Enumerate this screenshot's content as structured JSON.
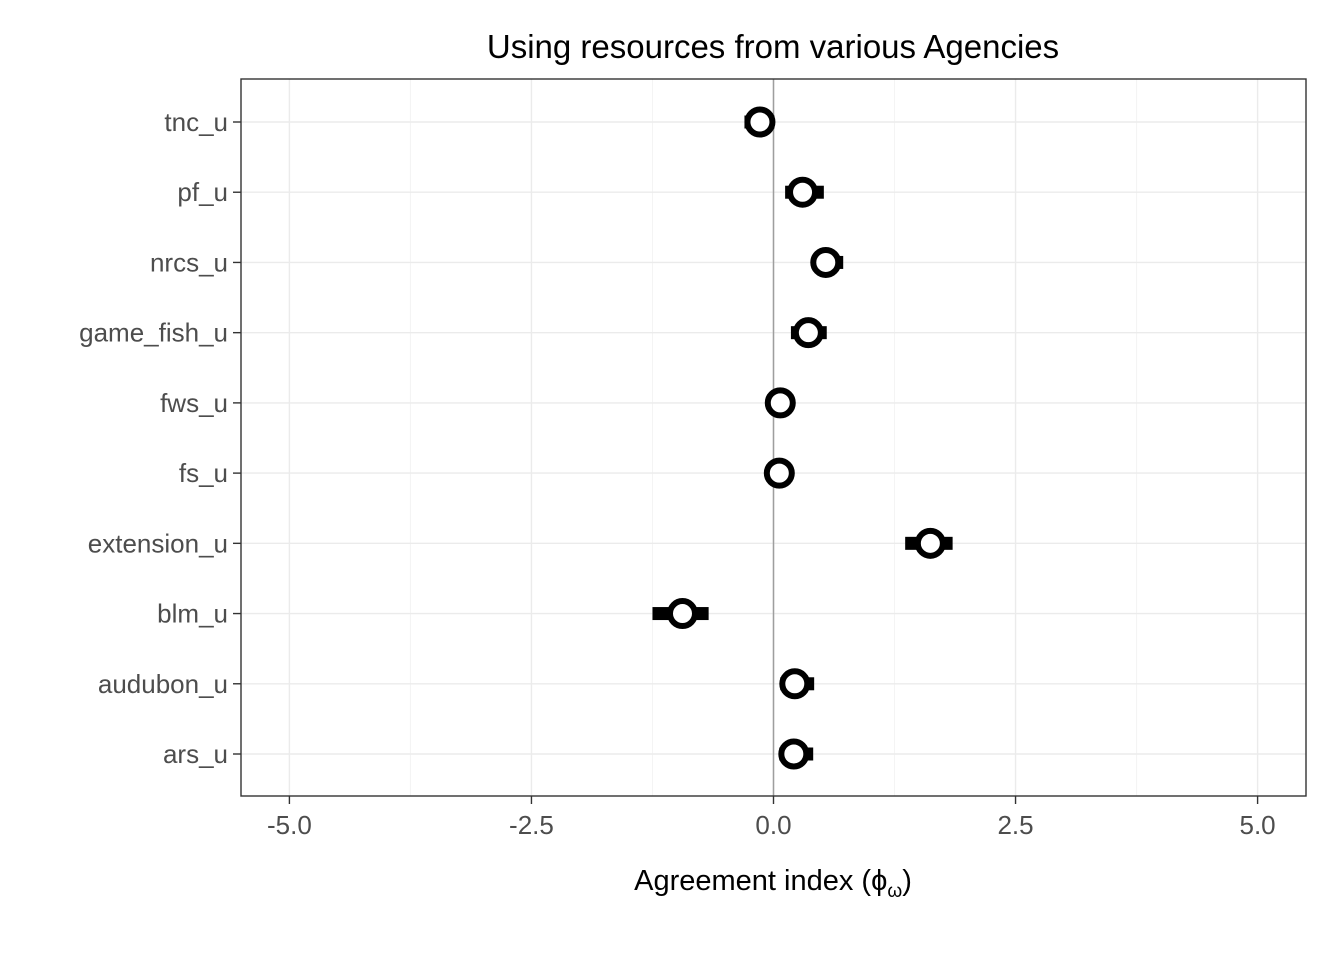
{
  "chart_data": {
    "type": "scatter",
    "title": "Using resources from various Agencies",
    "xlabel": "Agreement index (",
    "xlabel_symbol": "ϕ",
    "xlabel_subscript": "ω",
    "xlabel_close": ")",
    "ylabel": "",
    "xlim": [
      -5.5,
      5.5
    ],
    "x_ticks": [
      -5.0,
      -2.5,
      0.0,
      2.5,
      5.0
    ],
    "x_tick_labels": [
      "-5.0",
      "-2.5",
      "0.0",
      "2.5",
      "5.0"
    ],
    "reference_line_x": 0,
    "grid": true,
    "categories": [
      "tnc_u",
      "pf_u",
      "nrcs_u",
      "game_fish_u",
      "fws_u",
      "fs_u",
      "extension_u",
      "blm_u",
      "audubon_u",
      "ars_u"
    ],
    "values": [
      -0.14,
      0.3,
      0.54,
      0.36,
      0.07,
      0.06,
      1.62,
      -0.94,
      0.22,
      0.21
    ],
    "ci_low": [
      -0.3,
      0.12,
      0.4,
      0.18,
      0.0,
      0.0,
      1.36,
      -1.25,
      0.07,
      0.06
    ],
    "ci_high": [
      0.01,
      0.52,
      0.72,
      0.55,
      0.13,
      0.13,
      1.85,
      -0.67,
      0.42,
      0.41
    ],
    "colors": {
      "point_fill": "#ffffff",
      "point_stroke": "#000000",
      "ci": "#000000",
      "ref_line": "#9e9e9e",
      "grid": "#ebebeb",
      "border": "#333333"
    }
  }
}
